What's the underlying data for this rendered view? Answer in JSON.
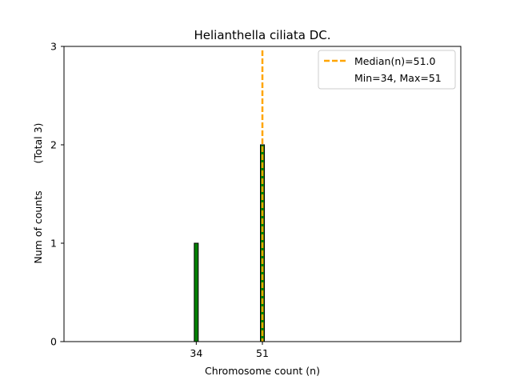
{
  "chart_data": {
    "type": "bar",
    "title": "Helianthella ciliata DC.",
    "xlabel": "Chromosome count (n)",
    "ylabel": "Num of counts",
    "ylabel_total": "(Total 3)",
    "x_ticks": [
      34,
      51
    ],
    "y_ticks": [
      0,
      1,
      2,
      3
    ],
    "xlim": [
      0,
      102
    ],
    "ylim": [
      0,
      3
    ],
    "grid": false,
    "bars": [
      {
        "x": 34,
        "value": 1
      },
      {
        "x": 51,
        "value": 2
      }
    ],
    "median": 51.0,
    "bar_color": "#008000",
    "median_color": "#FFA500",
    "legend": {
      "placement": "top-right",
      "entries": [
        "Median(n)=51.0",
        "Min=34, Max=51"
      ]
    }
  }
}
